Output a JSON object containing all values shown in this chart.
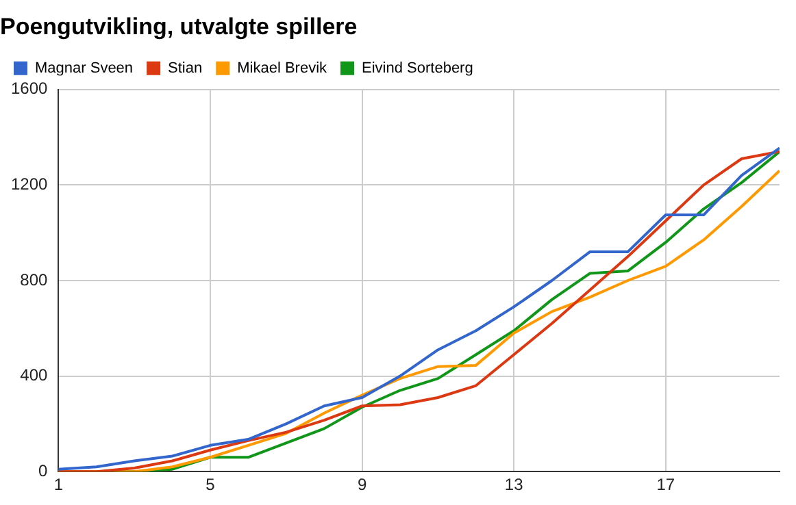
{
  "chart_data": {
    "type": "line",
    "title": "Poengutvikling, utvalgte spillere",
    "x": [
      1,
      2,
      3,
      4,
      5,
      6,
      7,
      8,
      9,
      10,
      11,
      12,
      13,
      14,
      15,
      16,
      17,
      18,
      19,
      20
    ],
    "series": [
      {
        "name": "Magnar Sveen",
        "color": "#3366cc",
        "values": [
          10,
          20,
          45,
          65,
          110,
          135,
          200,
          275,
          310,
          400,
          510,
          590,
          690,
          800,
          920,
          920,
          1075,
          1075,
          1240,
          1355
        ]
      },
      {
        "name": "Stian",
        "color": "#dc3912",
        "values": [
          0,
          0,
          15,
          45,
          90,
          130,
          165,
          215,
          275,
          280,
          310,
          360,
          490,
          620,
          760,
          900,
          1050,
          1200,
          1310,
          1340
        ]
      },
      {
        "name": "Mikael Brevik",
        "color": "#ff9900",
        "values": [
          0,
          0,
          0,
          20,
          60,
          110,
          160,
          245,
          320,
          390,
          440,
          445,
          580,
          670,
          730,
          800,
          860,
          970,
          1110,
          1260
        ]
      },
      {
        "name": "Eivind Sorteberg",
        "color": "#109618",
        "values": [
          0,
          0,
          0,
          10,
          60,
          60,
          120,
          180,
          270,
          340,
          390,
          490,
          590,
          720,
          830,
          840,
          960,
          1100,
          1210,
          1340
        ]
      }
    ],
    "xlim": [
      1,
      20
    ],
    "xticks": [
      1,
      5,
      9,
      13,
      17
    ],
    "ylim": [
      0,
      1600
    ],
    "yticks": [
      0,
      400,
      800,
      1200,
      1600
    ],
    "grid": true,
    "legend": "top left",
    "marker": "none",
    "line_style": "solid"
  }
}
